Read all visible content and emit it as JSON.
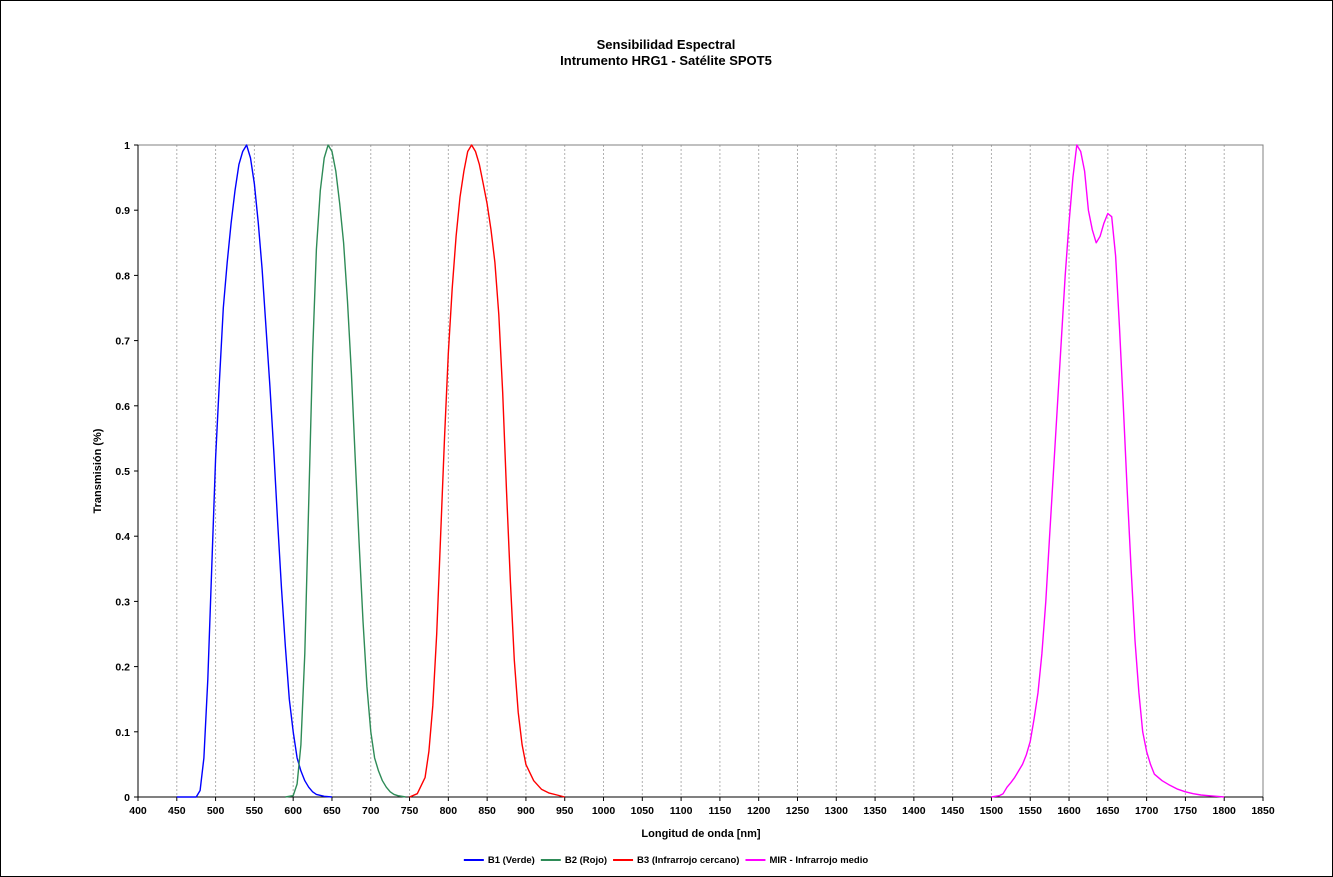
{
  "chart_data": {
    "type": "line",
    "title": [
      "Sensibilidad Espectral",
      "Intrumento HRG1 - Satélite SPOT5"
    ],
    "xlabel": "Longitud de onda [nm]",
    "ylabel": "Transmisión (%)",
    "xlim": [
      400,
      1850
    ],
    "ylim": [
      0,
      1
    ],
    "x_ticks": [
      400,
      450,
      500,
      550,
      600,
      650,
      700,
      750,
      800,
      850,
      900,
      950,
      1000,
      1050,
      1100,
      1150,
      1200,
      1250,
      1300,
      1350,
      1400,
      1450,
      1500,
      1550,
      1600,
      1650,
      1700,
      1750,
      1800,
      1850
    ],
    "y_ticks": [
      0,
      0.1,
      0.2,
      0.3,
      0.4,
      0.5,
      0.6,
      0.7,
      0.8,
      0.9,
      1
    ],
    "grid": "vertical-dashed",
    "legend_position": "bottom",
    "series": [
      {
        "name": "B1 (Verde)",
        "color": "#0000ff",
        "x": [
          450,
          475,
          480,
          485,
          490,
          495,
          500,
          505,
          510,
          515,
          520,
          525,
          530,
          535,
          540,
          545,
          550,
          555,
          560,
          565,
          570,
          575,
          580,
          585,
          590,
          595,
          600,
          605,
          610,
          615,
          620,
          625,
          630,
          640,
          650
        ],
        "y": [
          0,
          0,
          0.01,
          0.06,
          0.18,
          0.35,
          0.52,
          0.64,
          0.75,
          0.82,
          0.88,
          0.93,
          0.97,
          0.99,
          1.0,
          0.98,
          0.94,
          0.88,
          0.81,
          0.72,
          0.63,
          0.53,
          0.42,
          0.32,
          0.23,
          0.15,
          0.1,
          0.06,
          0.04,
          0.025,
          0.015,
          0.008,
          0.004,
          0.001,
          0
        ]
      },
      {
        "name": "B2 (Rojo)",
        "color": "#2e8b57",
        "x": [
          590,
          600,
          605,
          610,
          615,
          620,
          625,
          630,
          635,
          640,
          645,
          650,
          655,
          660,
          665,
          670,
          675,
          680,
          685,
          690,
          695,
          700,
          705,
          710,
          715,
          720,
          725,
          730,
          735,
          745
        ],
        "y": [
          0,
          0.002,
          0.02,
          0.08,
          0.22,
          0.45,
          0.68,
          0.84,
          0.93,
          0.98,
          1.0,
          0.99,
          0.96,
          0.91,
          0.85,
          0.76,
          0.65,
          0.52,
          0.39,
          0.27,
          0.17,
          0.1,
          0.06,
          0.04,
          0.025,
          0.015,
          0.008,
          0.004,
          0.002,
          0
        ]
      },
      {
        "name": "B3 (Infrarrojo cercano)",
        "color": "#ff0000",
        "x": [
          750,
          760,
          770,
          775,
          780,
          785,
          790,
          795,
          800,
          805,
          810,
          815,
          820,
          825,
          830,
          835,
          840,
          845,
          850,
          855,
          860,
          865,
          870,
          875,
          880,
          885,
          890,
          895,
          900,
          910,
          920,
          930,
          940,
          950
        ],
        "y": [
          0,
          0.005,
          0.03,
          0.07,
          0.14,
          0.25,
          0.4,
          0.55,
          0.68,
          0.78,
          0.86,
          0.92,
          0.96,
          0.99,
          1.0,
          0.99,
          0.97,
          0.94,
          0.91,
          0.87,
          0.82,
          0.74,
          0.62,
          0.47,
          0.33,
          0.21,
          0.13,
          0.08,
          0.05,
          0.025,
          0.012,
          0.006,
          0.003,
          0
        ]
      },
      {
        "name": "MIR - Infrarrojo medio",
        "color": "#ff00ff",
        "x": [
          1500,
          1510,
          1515,
          1520,
          1525,
          1530,
          1535,
          1540,
          1545,
          1550,
          1555,
          1560,
          1565,
          1570,
          1575,
          1580,
          1585,
          1590,
          1595,
          1600,
          1605,
          1610,
          1615,
          1620,
          1625,
          1630,
          1635,
          1640,
          1645,
          1650,
          1655,
          1660,
          1665,
          1670,
          1675,
          1680,
          1685,
          1690,
          1695,
          1700,
          1705,
          1710,
          1720,
          1730,
          1740,
          1750,
          1760,
          1770,
          1780,
          1790,
          1800
        ],
        "y": [
          0,
          0.002,
          0.005,
          0.015,
          0.022,
          0.03,
          0.04,
          0.05,
          0.065,
          0.085,
          0.12,
          0.16,
          0.22,
          0.3,
          0.4,
          0.5,
          0.6,
          0.7,
          0.8,
          0.88,
          0.95,
          1.0,
          0.99,
          0.96,
          0.9,
          0.87,
          0.85,
          0.86,
          0.88,
          0.895,
          0.89,
          0.83,
          0.72,
          0.6,
          0.47,
          0.35,
          0.24,
          0.16,
          0.1,
          0.07,
          0.05,
          0.035,
          0.025,
          0.018,
          0.012,
          0.008,
          0.005,
          0.003,
          0.002,
          0.001,
          0
        ]
      }
    ]
  }
}
